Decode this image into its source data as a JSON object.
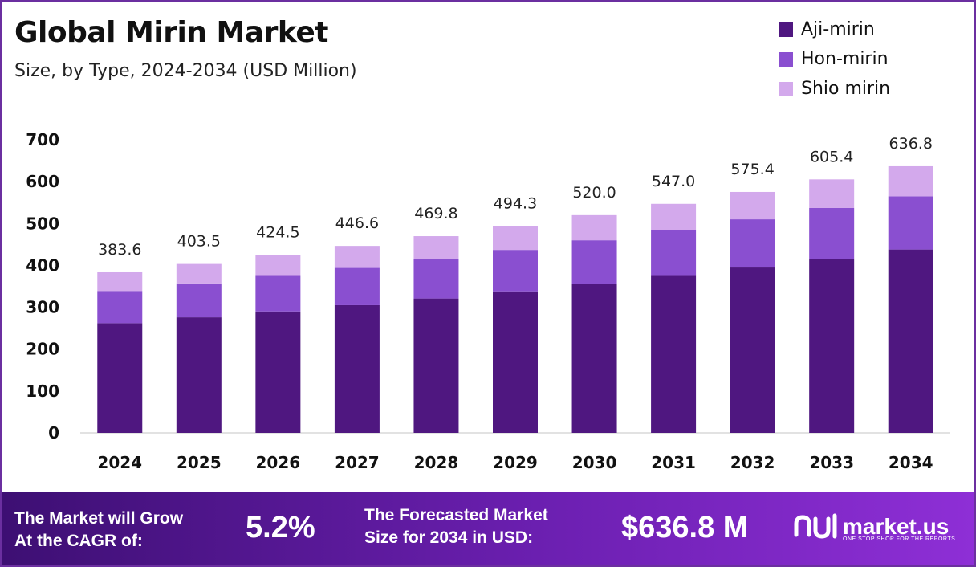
{
  "title": "Global Mirin Market",
  "subtitle": "Size, by Type, 2024-2034 (USD Million)",
  "colors": {
    "aji": "#4f1780",
    "hon": "#8a4fd0",
    "shio": "#d3a9ec",
    "frame": "#6b2fa0"
  },
  "chart_data": {
    "type": "bar",
    "stacked": true,
    "categories": [
      "2024",
      "2025",
      "2026",
      "2027",
      "2028",
      "2029",
      "2030",
      "2031",
      "2032",
      "2033",
      "2034"
    ],
    "series": [
      {
        "name": "Aji-mirin",
        "values": [
          262,
          276,
          290,
          305,
          321,
          338,
          356,
          375,
          395,
          415,
          438
        ]
      },
      {
        "name": "Hon-mirin",
        "values": [
          77,
          81,
          85,
          89,
          94,
          99,
          104,
          110,
          115,
          122,
          127
        ]
      },
      {
        "name": "Shio mirin",
        "values": [
          44.6,
          46.5,
          49.5,
          52.6,
          54.8,
          57.3,
          60.0,
          62.0,
          65.4,
          68.4,
          71.8
        ]
      }
    ],
    "totals": [
      "383.6",
      "403.5",
      "424.5",
      "446.6",
      "469.8",
      "494.3",
      "520.0",
      "547.0",
      "575.4",
      "605.4",
      "636.8"
    ],
    "yticks": [
      "0",
      "100",
      "200",
      "300",
      "400",
      "500",
      "600",
      "700"
    ],
    "ylim": [
      0,
      700
    ],
    "legend_position": "top-right",
    "grid": false
  },
  "footer": {
    "cagr_label_line1": "The Market will Grow",
    "cagr_label_line2": "At the CAGR of:",
    "cagr_value": "5.2%",
    "forecast_label_line1": "The Forecasted Market",
    "forecast_label_line2": "Size for 2034 in USD:",
    "forecast_value": "$636.8 M",
    "logo_text": "market.us",
    "logo_tagline": "ONE STOP SHOP FOR THE REPORTS"
  }
}
